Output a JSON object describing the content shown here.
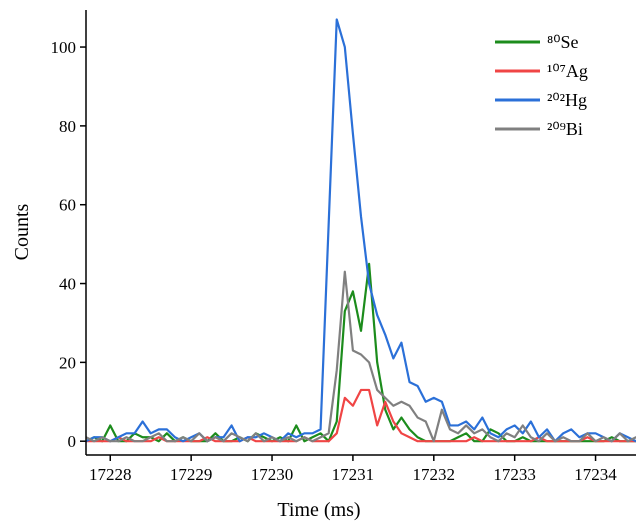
{
  "chart_data": {
    "type": "line",
    "xlabel": "Time (ms)",
    "ylabel": "Counts",
    "x": [
      17227.7,
      17227.8,
      17227.9,
      17228.0,
      17228.1,
      17228.2,
      17228.3,
      17228.4,
      17228.5,
      17228.6,
      17228.7,
      17228.8,
      17228.9,
      17229.0,
      17229.1,
      17229.2,
      17229.3,
      17229.4,
      17229.5,
      17229.6,
      17229.7,
      17229.8,
      17229.9,
      17230.0,
      17230.1,
      17230.2,
      17230.3,
      17230.4,
      17230.5,
      17230.6,
      17230.7,
      17230.8,
      17230.9,
      17231.0,
      17231.1,
      17231.2,
      17231.3,
      17231.4,
      17231.5,
      17231.6,
      17231.7,
      17231.8,
      17231.9,
      17232.0,
      17232.1,
      17232.2,
      17232.3,
      17232.4,
      17232.5,
      17232.6,
      17232.7,
      17232.8,
      17232.9,
      17233.0,
      17233.1,
      17233.2,
      17233.3,
      17233.4,
      17233.5,
      17233.6,
      17233.7,
      17233.8,
      17233.9,
      17234.0,
      17234.1,
      17234.2,
      17234.3,
      17234.4,
      17234.5,
      17234.6
    ],
    "series": [
      {
        "name": "⁸⁰Se",
        "color": "#1c8c1c",
        "values": [
          0,
          1,
          0,
          4,
          0,
          0,
          2,
          1,
          1,
          0,
          2,
          0,
          1,
          0,
          0,
          0,
          2,
          0,
          0,
          1,
          0,
          2,
          1,
          0,
          1,
          0,
          4,
          0,
          1,
          2,
          0,
          5,
          33,
          38,
          28,
          45,
          20,
          8,
          3,
          6,
          3,
          1,
          0,
          0,
          0,
          0,
          1,
          2,
          0,
          0,
          3,
          2,
          0,
          0,
          1,
          0,
          0,
          0,
          0,
          0,
          0,
          0,
          0,
          0,
          0,
          1,
          0,
          0,
          0,
          0
        ]
      },
      {
        "name": "¹⁰⁷Ag",
        "color": "#f04545",
        "values": [
          0,
          0,
          0,
          0,
          1,
          0,
          0,
          0,
          0,
          1,
          0,
          0,
          0,
          0,
          0,
          1,
          0,
          0,
          0,
          0,
          1,
          0,
          0,
          0,
          0,
          0,
          0,
          1,
          0,
          0,
          0,
          2,
          11,
          9,
          13,
          13,
          4,
          10,
          5,
          2,
          1,
          0,
          0,
          0,
          0,
          0,
          0,
          0,
          1,
          0,
          0,
          0,
          0,
          0,
          0,
          0,
          1,
          0,
          0,
          0,
          0,
          0,
          1,
          0,
          0,
          0,
          0,
          0,
          0,
          2
        ]
      },
      {
        "name": "²⁰²Hg",
        "color": "#2b70d8",
        "values": [
          0,
          1,
          1,
          0,
          1,
          2,
          2,
          5,
          2,
          3,
          3,
          1,
          0,
          1,
          2,
          0,
          1,
          1,
          4,
          0,
          1,
          1,
          2,
          1,
          0,
          2,
          1,
          2,
          2,
          3,
          55,
          107,
          100,
          78,
          57,
          40,
          32,
          27,
          21,
          25,
          15,
          14,
          10,
          11,
          10,
          4,
          4,
          5,
          3,
          6,
          2,
          1,
          3,
          4,
          2,
          5,
          1,
          3,
          0,
          2,
          3,
          1,
          2,
          2,
          1,
          0,
          2,
          1,
          0,
          1
        ]
      },
      {
        "name": "²⁰⁹Bi",
        "color": "#808080",
        "values": [
          1,
          0,
          1,
          0,
          0,
          1,
          0,
          0,
          1,
          2,
          0,
          0,
          1,
          0,
          2,
          0,
          1,
          0,
          2,
          1,
          0,
          2,
          0,
          1,
          0,
          1,
          0,
          1,
          0,
          1,
          2,
          18,
          43,
          23,
          22,
          20,
          13,
          11,
          9,
          10,
          9,
          6,
          5,
          0,
          8,
          3,
          2,
          4,
          2,
          3,
          1,
          0,
          2,
          1,
          4,
          1,
          0,
          2,
          0,
          1,
          0,
          0,
          2,
          0,
          1,
          0,
          2,
          0,
          1,
          0
        ]
      }
    ],
    "xlim": [
      17227.7,
      17234.5
    ],
    "ylim": [
      -3.5,
      109.4
    ],
    "xticks": [
      17228,
      17229,
      17230,
      17231,
      17232,
      17233,
      17234
    ],
    "yticks": [
      0,
      20,
      40,
      60,
      80,
      100
    ],
    "legend": "upper-right"
  }
}
